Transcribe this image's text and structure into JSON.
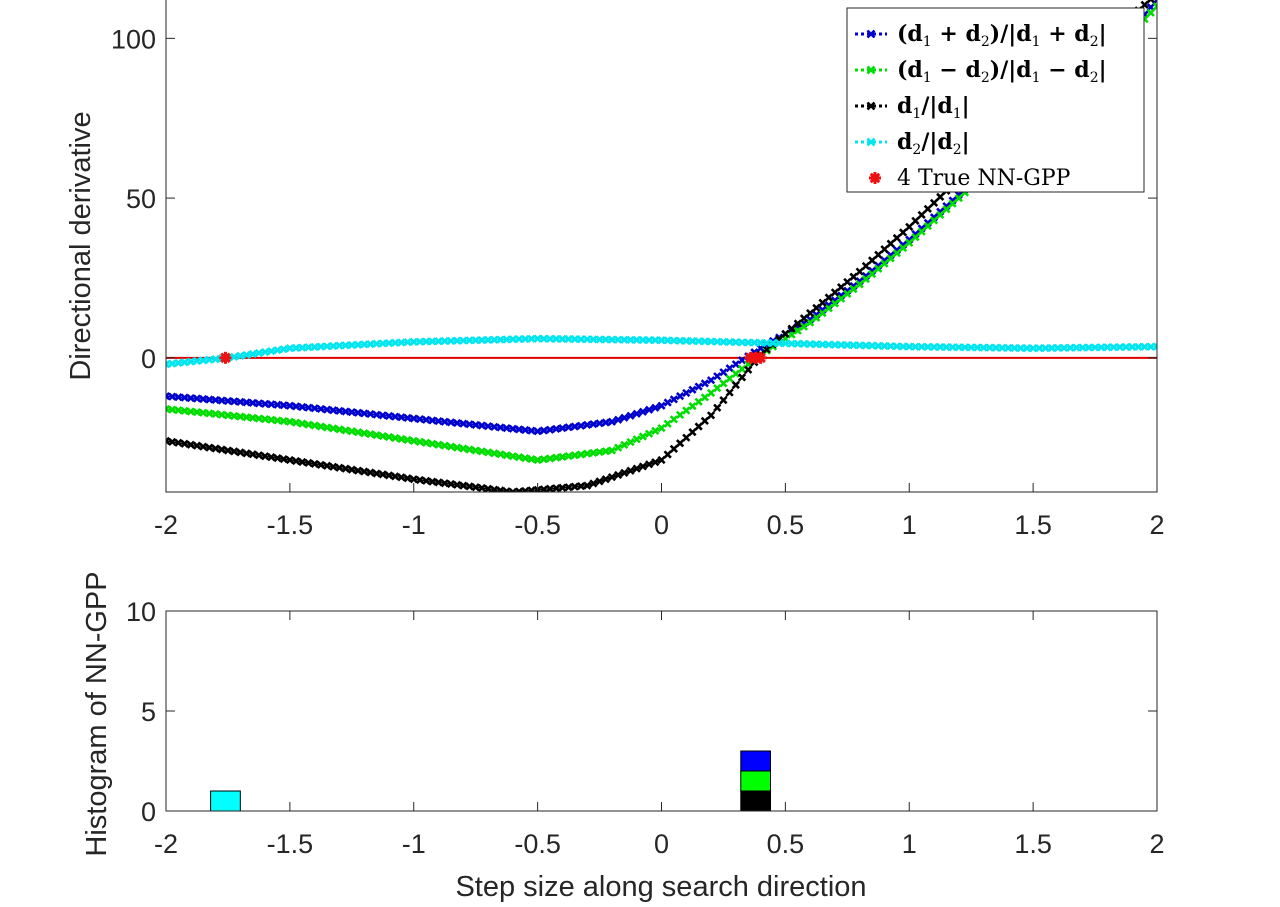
{
  "chart_data": [
    {
      "type": "scatter",
      "ylabel": "Directional derivative",
      "xlim": [
        -2,
        2
      ],
      "ylim": [
        -42,
        112
      ],
      "xticks": [
        "-2",
        "-1.5",
        "-1",
        "-0.5",
        "0",
        "0.5",
        "1",
        "1.5",
        "2"
      ],
      "yticks": [
        "0",
        "50",
        "100"
      ],
      "grid": false,
      "legend_position": "top-right",
      "zero_line": {
        "y": 0,
        "color": "#e00000"
      },
      "series": [
        {
          "name_parts": [
            "(d",
            "1",
            " + d",
            "2",
            ")/|d",
            "1",
            " + d",
            "2",
            "|"
          ],
          "color": "#0000cc",
          "marker": "x",
          "points": [
            [
              -2,
              -12
            ],
            [
              -1.5,
              -15
            ],
            [
              -1,
              -19
            ],
            [
              -0.5,
              -23
            ],
            [
              -0.2,
              -20
            ],
            [
              0,
              -15
            ],
            [
              0.2,
              -7
            ],
            [
              0.4,
              3
            ],
            [
              0.6,
              12
            ],
            [
              0.8,
              24
            ],
            [
              1,
              37
            ],
            [
              1.2,
              51
            ],
            [
              1.4,
              65
            ],
            [
              1.6,
              79
            ],
            [
              1.8,
              94
            ],
            [
              2,
              112
            ]
          ]
        },
        {
          "name_parts": [
            "(d",
            "1",
            " − d",
            "2",
            ")/|d",
            "1",
            " − d",
            "2",
            "|"
          ],
          "color": "#00dd00",
          "marker": "x",
          "points": [
            [
              -2,
              -16
            ],
            [
              -1.5,
              -20
            ],
            [
              -1,
              -26
            ],
            [
              -0.5,
              -32
            ],
            [
              -0.2,
              -29
            ],
            [
              0,
              -22
            ],
            [
              0.2,
              -11
            ],
            [
              0.4,
              1
            ],
            [
              0.6,
              11
            ],
            [
              0.8,
              23
            ],
            [
              1,
              36
            ],
            [
              1.2,
              50
            ],
            [
              1.4,
              64
            ],
            [
              1.6,
              79
            ],
            [
              1.8,
              94
            ],
            [
              2,
              110
            ]
          ]
        },
        {
          "name_parts": [
            "d",
            "1",
            "/|d",
            "1",
            "|"
          ],
          "color": "#000000",
          "marker": "x",
          "points": [
            [
              -2,
              -26
            ],
            [
              -1.5,
              -32
            ],
            [
              -1,
              -38
            ],
            [
              -0.6,
              -42
            ],
            [
              -0.3,
              -40
            ],
            [
              0,
              -32
            ],
            [
              0.2,
              -18
            ],
            [
              0.4,
              1
            ],
            [
              0.6,
              14
            ],
            [
              0.8,
              27
            ],
            [
              1,
              41
            ],
            [
              1.2,
              56
            ],
            [
              1.4,
              71
            ],
            [
              1.6,
              86
            ],
            [
              1.8,
              100
            ],
            [
              2,
              114
            ]
          ]
        },
        {
          "name_parts": [
            "d",
            "2",
            "/|d",
            "2",
            "|"
          ],
          "color": "#00e5ee",
          "marker": "x",
          "points": [
            [
              -2,
              -2
            ],
            [
              -1.75,
              0
            ],
            [
              -1.5,
              3
            ],
            [
              -1,
              5
            ],
            [
              -0.5,
              6
            ],
            [
              0,
              5.5
            ],
            [
              0.5,
              4.5
            ],
            [
              1,
              3.5
            ],
            [
              1.5,
              3
            ],
            [
              2,
              3.5
            ]
          ]
        },
        {
          "name": "4 True NN-GPP",
          "color": "#ee1111",
          "marker": "star",
          "points": [
            [
              -1.76,
              0
            ],
            [
              0.36,
              0
            ],
            [
              0.38,
              0
            ],
            [
              0.4,
              0
            ]
          ]
        }
      ]
    },
    {
      "type": "bar",
      "xlabel": "Step size along search direction",
      "ylabel": "Histogram of NN-GPP",
      "xlim": [
        -2,
        2
      ],
      "ylim": [
        0,
        10
      ],
      "xticks": [
        "-2",
        "-1.5",
        "-1",
        "-0.5",
        "0",
        "0.5",
        "1",
        "1.5",
        "2"
      ],
      "yticks": [
        "0",
        "5",
        "10"
      ],
      "bin_width": 0.12,
      "stacks": [
        {
          "x": -1.76,
          "segments": [
            {
              "count": 1,
              "color": "#00ffff"
            }
          ]
        },
        {
          "x": 0.38,
          "segments": [
            {
              "count": 1,
              "color": "#000000"
            },
            {
              "count": 1,
              "color": "#00ff00"
            },
            {
              "count": 1,
              "color": "#0000ff"
            }
          ]
        }
      ]
    }
  ]
}
